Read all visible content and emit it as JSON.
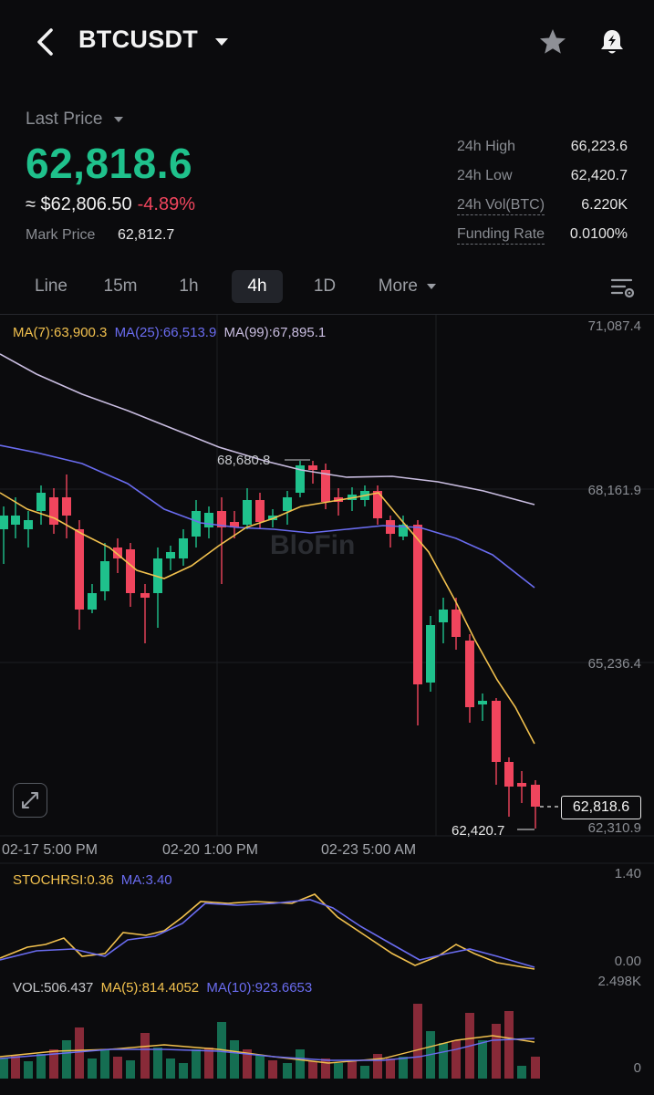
{
  "header": {
    "symbol": "BTCUSDT",
    "icons": {
      "back": "chevron-left-icon",
      "dropdown": "caret-down-icon",
      "favorite": "star-icon",
      "alert": "bell-alert-icon"
    }
  },
  "ticker": {
    "last_price_label": "Last Price",
    "last_price": "62,818.6",
    "usd_value": "≈ $62,806.50",
    "change_pct": "-4.89%",
    "mark_price_label": "Mark Price",
    "mark_price": "62,812.7",
    "stats": [
      {
        "label": "24h High",
        "value": "66,223.6"
      },
      {
        "label": "24h Low",
        "value": "62,420.7"
      },
      {
        "label": "24h Vol(BTC)",
        "value": "6.220K"
      },
      {
        "label": "Funding Rate",
        "value": "0.0100%"
      }
    ],
    "colors": {
      "up": "#1fc18c",
      "down": "#f0455d"
    }
  },
  "tabs": [
    {
      "label": "Line",
      "active": false
    },
    {
      "label": "15m",
      "active": false
    },
    {
      "label": "1h",
      "active": false
    },
    {
      "label": "4h",
      "active": true
    },
    {
      "label": "1D",
      "active": false
    },
    {
      "label": "More",
      "active": false
    }
  ],
  "chart_settings_icon": "chart-settings-icon",
  "chart": {
    "ma7": "MA(7):63,900.3",
    "ma25": "MA(25):66,513.9",
    "ma99": "MA(99):67,895.1",
    "y_ticks": [
      "71,087.4",
      "68,161.9",
      "65,236.4",
      "62,310.9"
    ],
    "x_ticks": [
      "02-17 5:00 PM",
      "02-20 1:00 PM",
      "02-23 5:00 AM"
    ],
    "high_marker": "68,680.8",
    "low_marker": "62,420.7",
    "current_tag": "62,818.6",
    "watermark": "BloFin",
    "colors": {
      "ma7": "#f2c14e",
      "ma25": "#6a6cf0",
      "ma99": "#c9bde0",
      "up": "#1fc18c",
      "down": "#f0455d"
    }
  },
  "stoch": {
    "label": "STOCHRSI:0.36",
    "ma_label": "MA:3.40",
    "y_top": "1.40",
    "y_bottom": "0.00"
  },
  "volume": {
    "label": "VOL:506.437",
    "ma5": "MA(5):814.4052",
    "ma10": "MA(10):923.6653",
    "y_top": "2.498K",
    "y_bottom": "0"
  }
}
